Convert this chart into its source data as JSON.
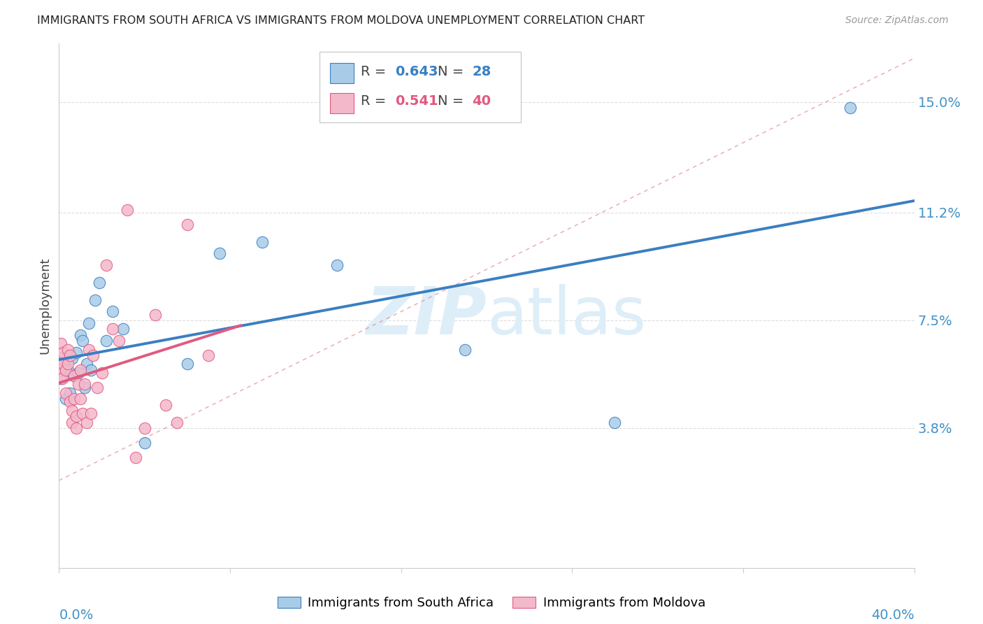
{
  "title": "IMMIGRANTS FROM SOUTH AFRICA VS IMMIGRANTS FROM MOLDOVA UNEMPLOYMENT CORRELATION CHART",
  "source": "Source: ZipAtlas.com",
  "ylabel": "Unemployment",
  "yticks": [
    0.038,
    0.075,
    0.112,
    0.15
  ],
  "ytick_labels": [
    "3.8%",
    "7.5%",
    "11.2%",
    "15.0%"
  ],
  "xlim": [
    0.0,
    0.4
  ],
  "ylim": [
    -0.01,
    0.17
  ],
  "blue_color": "#a8cce8",
  "blue_line_color": "#3a7fc1",
  "pink_color": "#f4b8cb",
  "pink_line_color": "#e05a80",
  "legend_blue_r": "0.643",
  "legend_blue_n": "28",
  "legend_pink_r": "0.541",
  "legend_pink_n": "40",
  "south_africa_x": [
    0.001,
    0.002,
    0.003,
    0.004,
    0.005,
    0.006,
    0.007,
    0.008,
    0.009,
    0.01,
    0.011,
    0.012,
    0.013,
    0.014,
    0.015,
    0.017,
    0.019,
    0.022,
    0.025,
    0.03,
    0.04,
    0.06,
    0.075,
    0.095,
    0.13,
    0.19,
    0.26,
    0.37
  ],
  "south_africa_y": [
    0.055,
    0.06,
    0.048,
    0.058,
    0.05,
    0.062,
    0.056,
    0.064,
    0.057,
    0.07,
    0.068,
    0.052,
    0.06,
    0.074,
    0.058,
    0.082,
    0.088,
    0.068,
    0.078,
    0.072,
    0.033,
    0.06,
    0.098,
    0.102,
    0.094,
    0.065,
    0.04,
    0.148
  ],
  "moldova_x": [
    0.0005,
    0.001,
    0.001,
    0.0015,
    0.002,
    0.002,
    0.003,
    0.003,
    0.004,
    0.004,
    0.005,
    0.005,
    0.006,
    0.006,
    0.007,
    0.007,
    0.008,
    0.008,
    0.009,
    0.01,
    0.01,
    0.011,
    0.012,
    0.013,
    0.014,
    0.015,
    0.016,
    0.018,
    0.02,
    0.022,
    0.025,
    0.028,
    0.032,
    0.036,
    0.04,
    0.045,
    0.05,
    0.055,
    0.06,
    0.07
  ],
  "moldova_y": [
    0.058,
    0.062,
    0.067,
    0.055,
    0.06,
    0.064,
    0.058,
    0.05,
    0.06,
    0.065,
    0.047,
    0.063,
    0.044,
    0.04,
    0.056,
    0.048,
    0.042,
    0.038,
    0.053,
    0.048,
    0.058,
    0.043,
    0.053,
    0.04,
    0.065,
    0.043,
    0.063,
    0.052,
    0.057,
    0.094,
    0.072,
    0.068,
    0.113,
    0.028,
    0.038,
    0.077,
    0.046,
    0.04,
    0.108,
    0.063
  ],
  "grid_color": "#dddddd",
  "spine_color": "#cccccc",
  "tick_label_color": "#4292c6",
  "title_color": "#222222",
  "source_color": "#999999",
  "watermark_color": "#ddeef8"
}
